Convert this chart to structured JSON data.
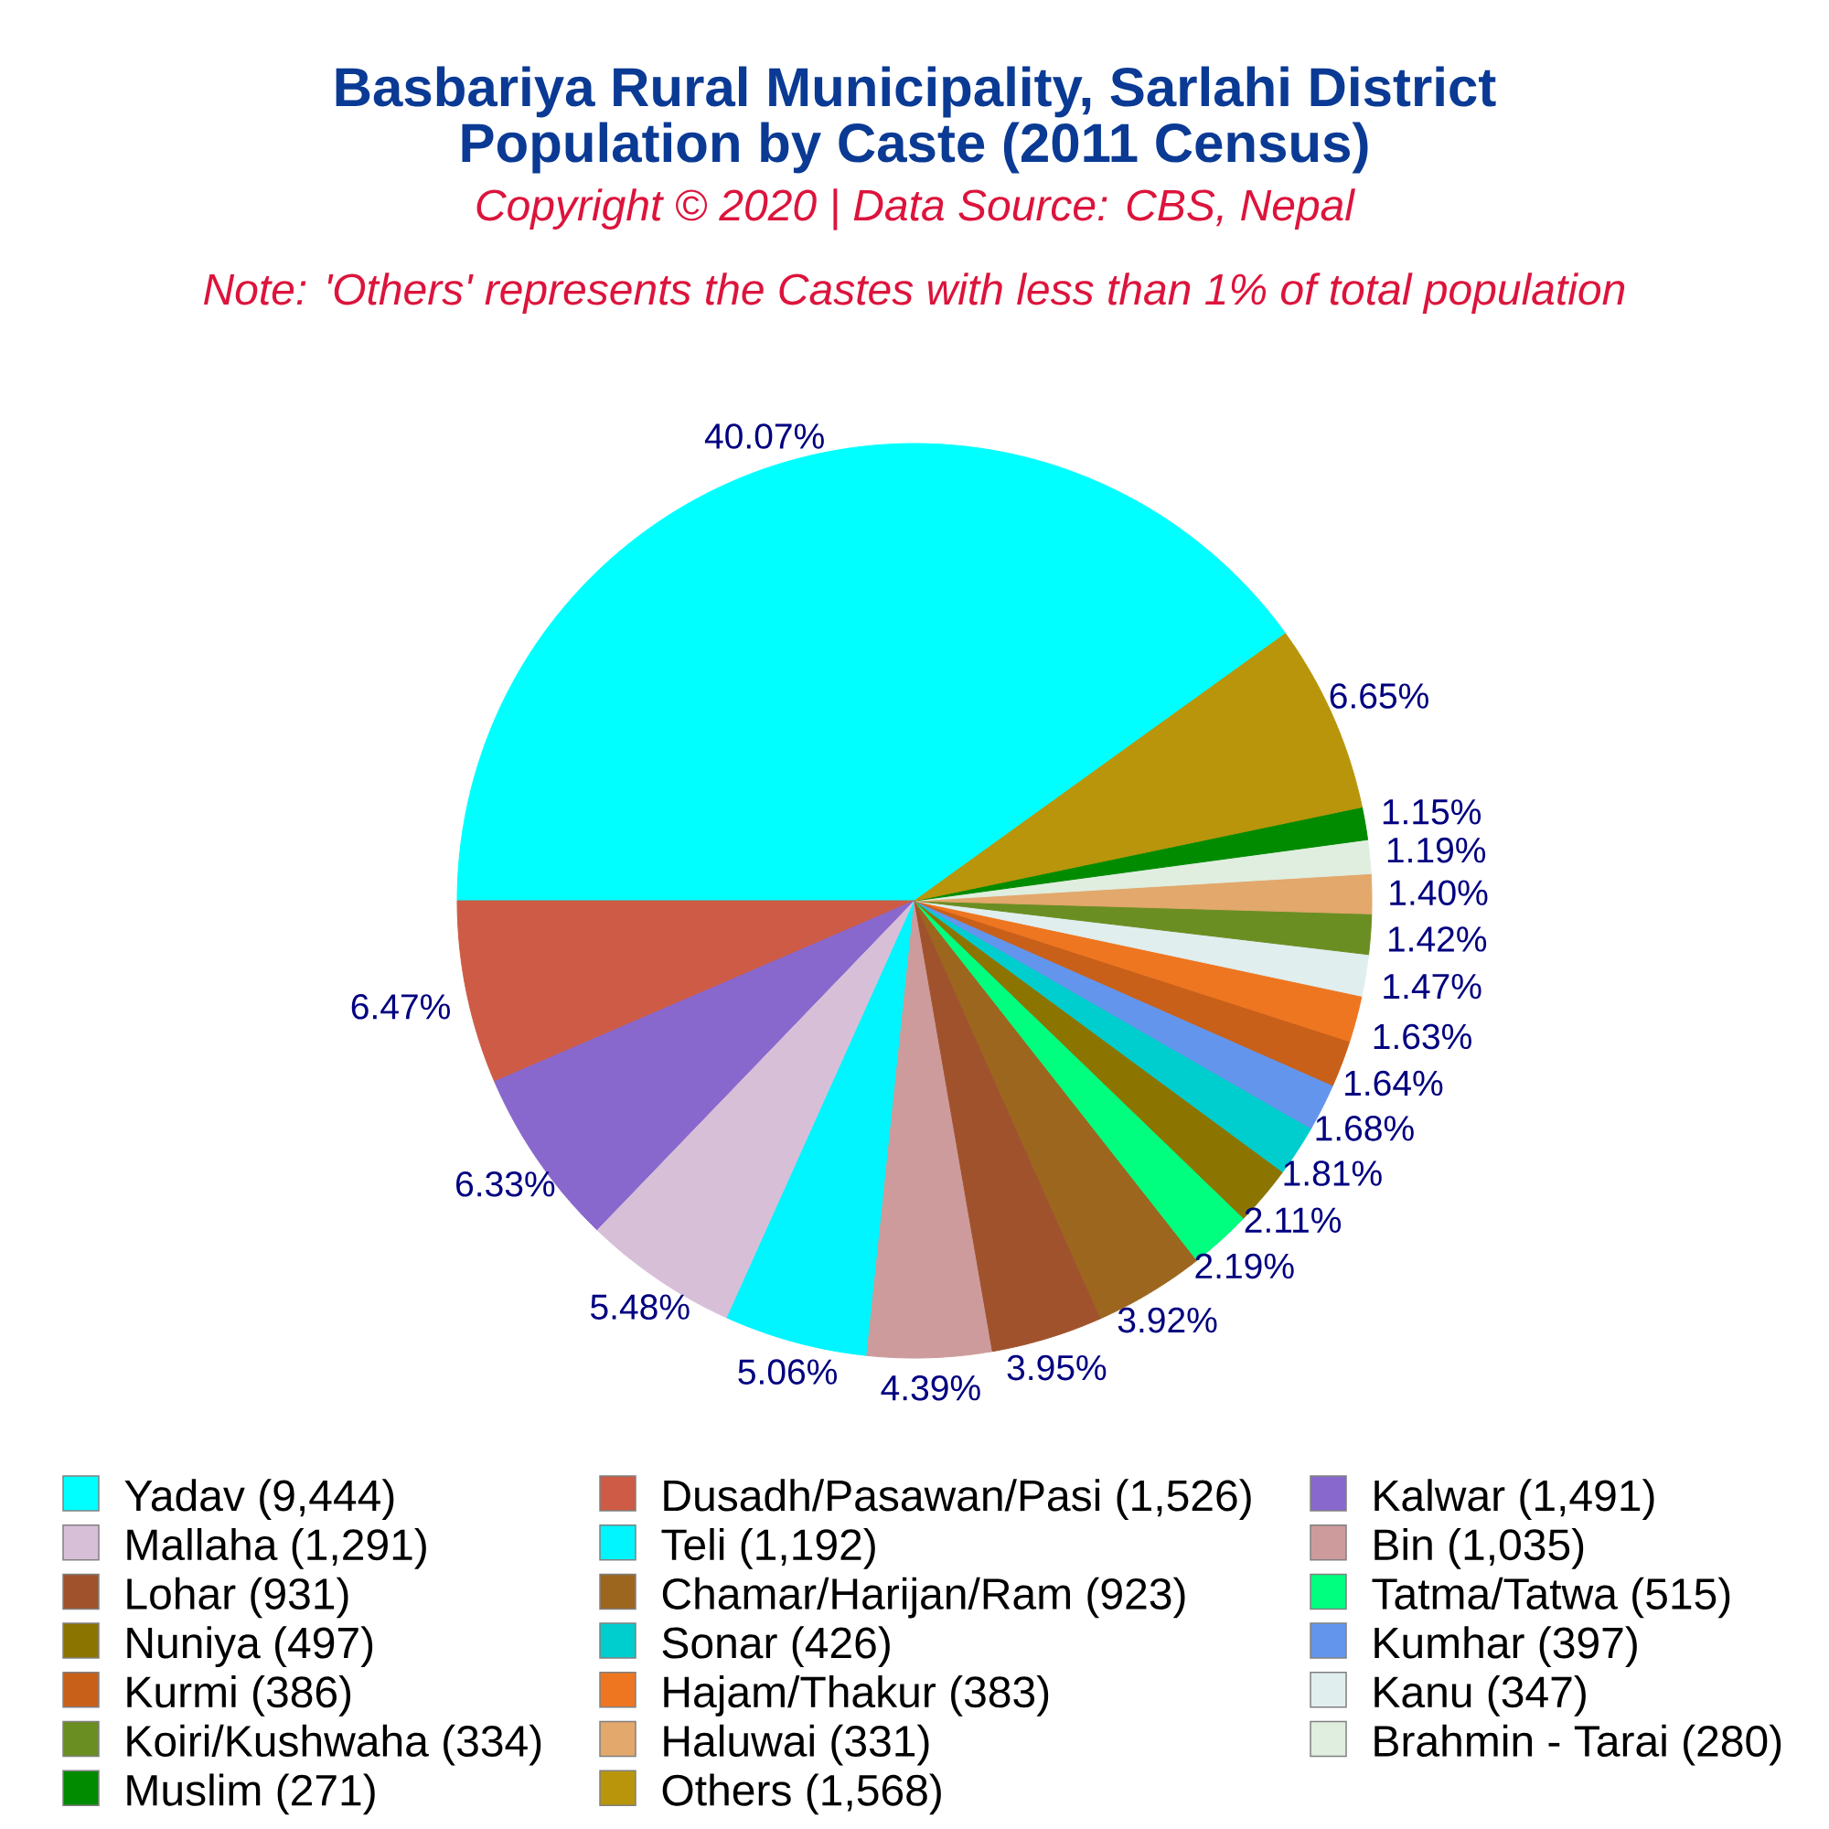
{
  "chart_data": {
    "type": "pie",
    "title": "Basbariya Rural Municipality, Sarlahi District",
    "subtitle": "Population by Caste (2011 Census)",
    "annotations": [
      "Copyright © 2020 | Data Source: CBS, Nepal",
      "Note: 'Others' represents the Castes with less than 1% of total population"
    ],
    "categories": [
      "Yadav (9,444)",
      "Dusadh/Pasawan/Pasi (1,526)",
      "Kalwar (1,491)",
      "Mallaha (1,291)",
      "Teli (1,192)",
      "Bin (1,035)",
      "Lohar (931)",
      "Chamar/Harijan/Ram (923)",
      "Tatma/Tatwa (515)",
      "Nuniya (497)",
      "Sonar (426)",
      "Kumhar (397)",
      "Kurmi (386)",
      "Hajam/Thakur (383)",
      "Kanu (347)",
      "Koiri/Kushwaha (334)",
      "Haluwai (331)",
      "Brahmin - Tarai (280)",
      "Muslim (271)",
      "Others (1,568)"
    ],
    "values": [
      40.07,
      6.47,
      6.33,
      5.48,
      5.06,
      4.39,
      3.95,
      3.92,
      2.19,
      2.11,
      1.81,
      1.68,
      1.64,
      1.63,
      1.47,
      1.42,
      1.4,
      1.19,
      1.15,
      6.65
    ],
    "value_labels": [
      "40.07%",
      "6.47%",
      "6.33%",
      "5.48%",
      "5.06%",
      "4.39%",
      "3.95%",
      "3.92%",
      "2.19%",
      "2.11%",
      "1.81%",
      "1.68%",
      "1.64%",
      "1.63%",
      "1.47%",
      "1.42%",
      "1.40%",
      "1.19%",
      "1.15%",
      "6.65%"
    ],
    "colors": [
      "#00ffff",
      "#cd5b45",
      "#8968cd",
      "#d8bfd8",
      "#00f5ff",
      "#cd9b9b",
      "#a0522d",
      "#9c661f",
      "#00ff7f",
      "#8b7500",
      "#00cdcd",
      "#6495ed",
      "#c8601a",
      "#ee7621",
      "#e0eeee",
      "#6b8e23",
      "#e2a86c",
      "#e0eee0",
      "#008b00",
      "#b8950b"
    ],
    "legend": "bottom"
  }
}
